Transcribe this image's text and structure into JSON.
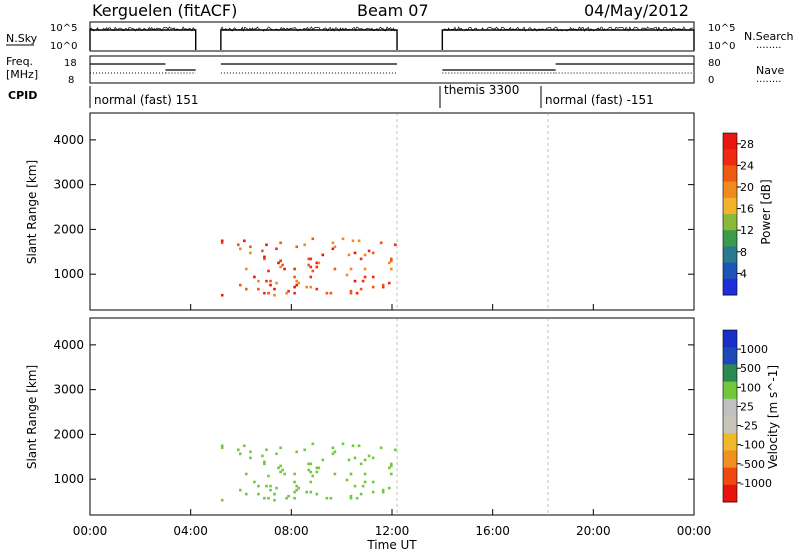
{
  "header": {
    "station": "Kerguelen (fitACF)",
    "beam": "Beam 07",
    "date": "04/May/2012"
  },
  "labels": {
    "nsky": "N.Sky",
    "nsearch": "N.Search",
    "freq_line1": "Freq.",
    "freq_line2": "[MHz]",
    "nave": "Nave",
    "cpid": "CPID",
    "legend_dots": "........"
  },
  "noise_panel": {
    "left_ticks": [
      "10^5",
      "10^0"
    ],
    "right_ticks": [
      "10^5",
      "10^0"
    ]
  },
  "freq_panel": {
    "left_ticks": [
      "18",
      "8"
    ],
    "right_ticks": [
      "80",
      "0"
    ]
  },
  "cpid_segments": [
    {
      "label": "normal (fast) 151",
      "start_h": 0
    },
    {
      "label": "themis 3300",
      "start_h": 14.0
    },
    {
      "label": "normal (fast) -151",
      "start_h": 18.2
    }
  ],
  "colors": {
    "power": [
      "#1e2fd9",
      "#1e54b8",
      "#2a7a8f",
      "#3c9a4a",
      "#8ab83a",
      "#f0b32a",
      "#f08a1e",
      "#ee5a12",
      "#ee2a10",
      "#e81510"
    ],
    "velocity": [
      "#e8120e",
      "#ee4a10",
      "#f0901e",
      "#f0b82a",
      "#c8c4b8",
      "#c0c0c0",
      "#70c83a",
      "#2a8a50",
      "#1e4ab8",
      "#1a2fc8"
    ]
  },
  "chart_data": [
    {
      "type": "heatmap",
      "name": "power",
      "ylabel": "Slant Range [km]",
      "xlabel": "Time UT",
      "x_ticks": [
        "00:00",
        "04:00",
        "08:00",
        "12:00",
        "16:00",
        "20:00",
        "00:00"
      ],
      "xlim": [
        0,
        24
      ],
      "ylim": [
        200,
        4600
      ],
      "y_ticks": [
        1000,
        2000,
        3000,
        4000
      ],
      "colorbar": {
        "label": "Power [dB]",
        "ticks": [
          4,
          8,
          12,
          16,
          20,
          24,
          28
        ],
        "range": [
          0,
          30
        ]
      },
      "data_gaps_h": [
        [
          4.2,
          5.2
        ],
        [
          12.2,
          14.0
        ]
      ]
    },
    {
      "type": "heatmap",
      "name": "velocity",
      "ylabel": "Slant Range [km]",
      "xlabel": "Time UT",
      "x_ticks": [
        "00:00",
        "04:00",
        "08:00",
        "12:00",
        "16:00",
        "20:00",
        "00:00"
      ],
      "xlim": [
        0,
        24
      ],
      "ylim": [
        200,
        4600
      ],
      "y_ticks": [
        1000,
        2000,
        3000,
        4000
      ],
      "colorbar": {
        "label": "Velocity [m s^-1]",
        "ticks": [
          "1000",
          "500",
          "100",
          "25",
          "-25",
          "-100",
          "-500",
          "-1000"
        ]
      },
      "data_gaps_h": [
        [
          4.2,
          5.2
        ],
        [
          12.2,
          14.0
        ]
      ]
    }
  ]
}
